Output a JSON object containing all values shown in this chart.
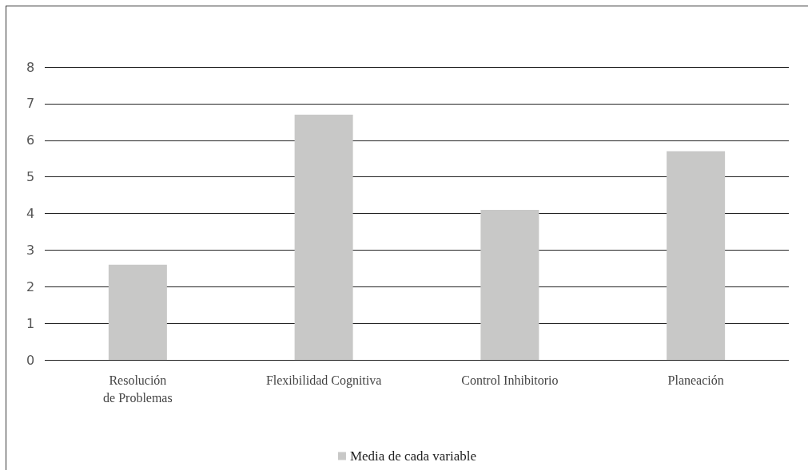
{
  "chart_data": {
    "type": "bar",
    "categories": [
      "Resolución\nde Problemas",
      "Flexibilidad Cognitiva",
      "Control Inhibitorio",
      "Planeación"
    ],
    "series": [
      {
        "name": "Media de cada variable",
        "color": "#c8c8c7",
        "values": [
          2.6,
          6.7,
          4.1,
          5.7
        ]
      }
    ],
    "ylim": [
      0,
      8
    ],
    "yticks": [
      0,
      1,
      2,
      3,
      4,
      5,
      6,
      7,
      8
    ],
    "grid": "y",
    "legend": "bottom"
  }
}
